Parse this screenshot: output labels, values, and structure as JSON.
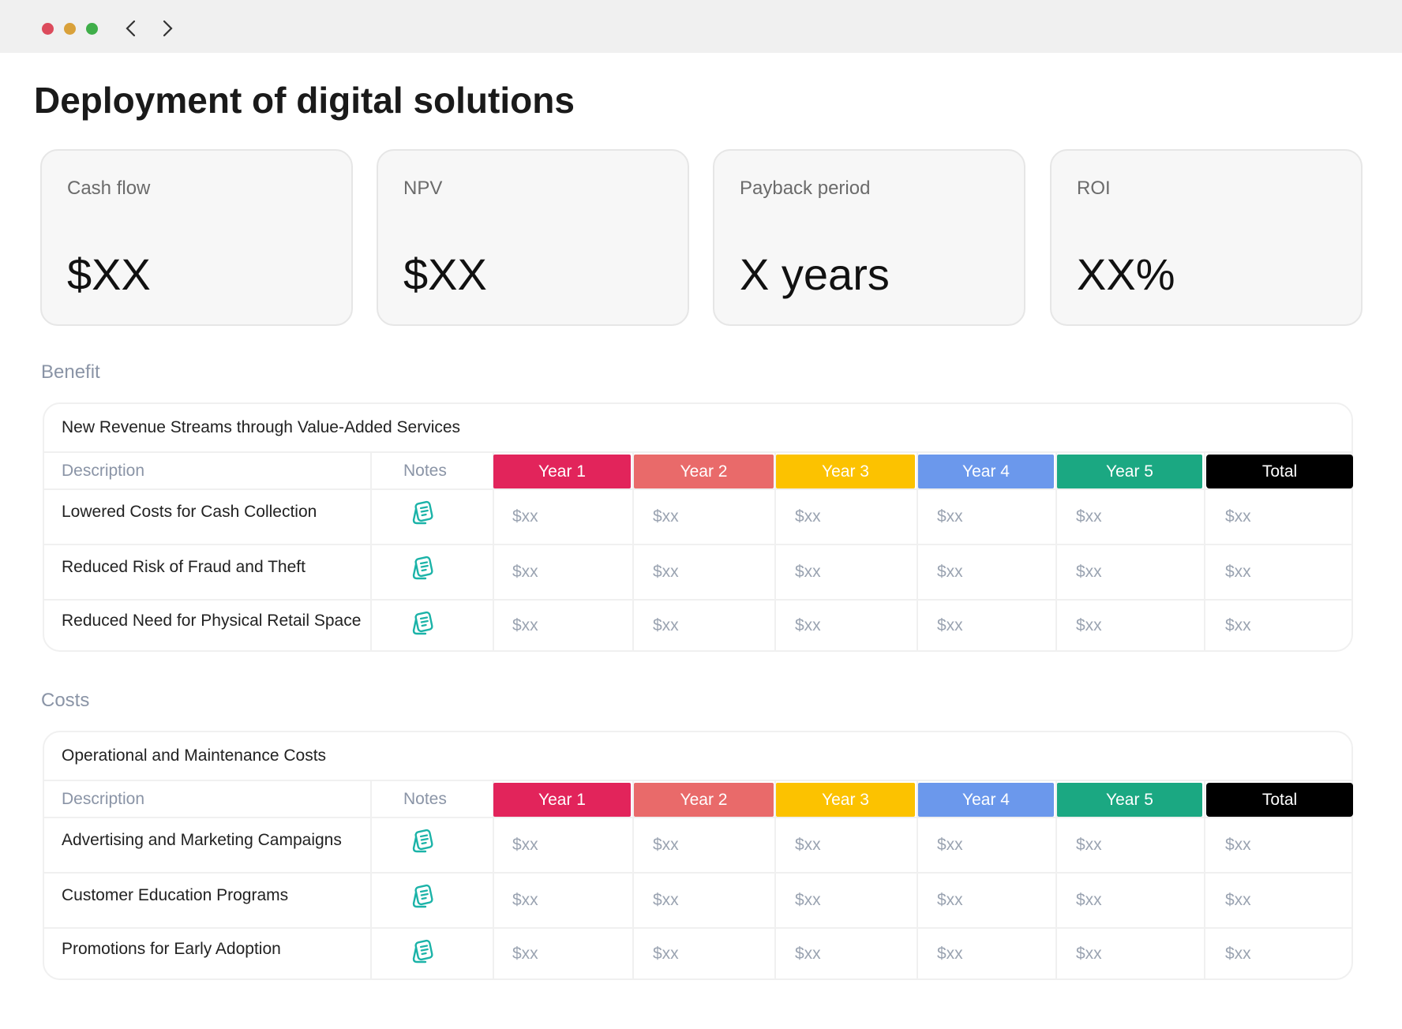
{
  "header": {
    "title": "Deployment of digital solutions"
  },
  "cards": [
    {
      "label": "Cash flow",
      "value": "$XX"
    },
    {
      "label": "NPV",
      "value": "$XX"
    },
    {
      "label": "Payback period",
      "value": "X years"
    },
    {
      "label": "ROI",
      "value": "XX%"
    }
  ],
  "sections": [
    {
      "label": "Benefit",
      "table": {
        "title": "New Revenue Streams through Value-Added Services",
        "columns": [
          "Description",
          "Notes",
          "Year 1",
          "Year 2",
          "Year 3",
          "Year 4",
          "Year 5",
          "Total"
        ],
        "rows": [
          {
            "description": "Lowered Costs for Cash Collection",
            "values": [
              "$xx",
              "$xx",
              "$xx",
              "$xx",
              "$xx",
              "$xx"
            ]
          },
          {
            "description": "Reduced Risk of Fraud and Theft",
            "values": [
              "$xx",
              "$xx",
              "$xx",
              "$xx",
              "$xx",
              "$xx"
            ]
          },
          {
            "description": "Reduced Need for Physical Retail Space",
            "values": [
              "$xx",
              "$xx",
              "$xx",
              "$xx",
              "$xx",
              "$xx"
            ]
          }
        ]
      }
    },
    {
      "label": "Costs",
      "table": {
        "title": "Operational and Maintenance Costs",
        "columns": [
          "Description",
          "Notes",
          "Year 1",
          "Year 2",
          "Year 3",
          "Year 4",
          "Year 5",
          "Total"
        ],
        "rows": [
          {
            "description": "Advertising and Marketing Campaigns",
            "values": [
              "$xx",
              "$xx",
              "$xx",
              "$xx",
              "$xx",
              "$xx"
            ]
          },
          {
            "description": "Customer Education Programs",
            "values": [
              "$xx",
              "$xx",
              "$xx",
              "$xx",
              "$xx",
              "$xx"
            ]
          },
          {
            "description": "Promotions for Early Adoption",
            "values": [
              "$xx",
              "$xx",
              "$xx",
              "$xx",
              "$xx",
              "$xx"
            ]
          }
        ]
      }
    }
  ]
}
